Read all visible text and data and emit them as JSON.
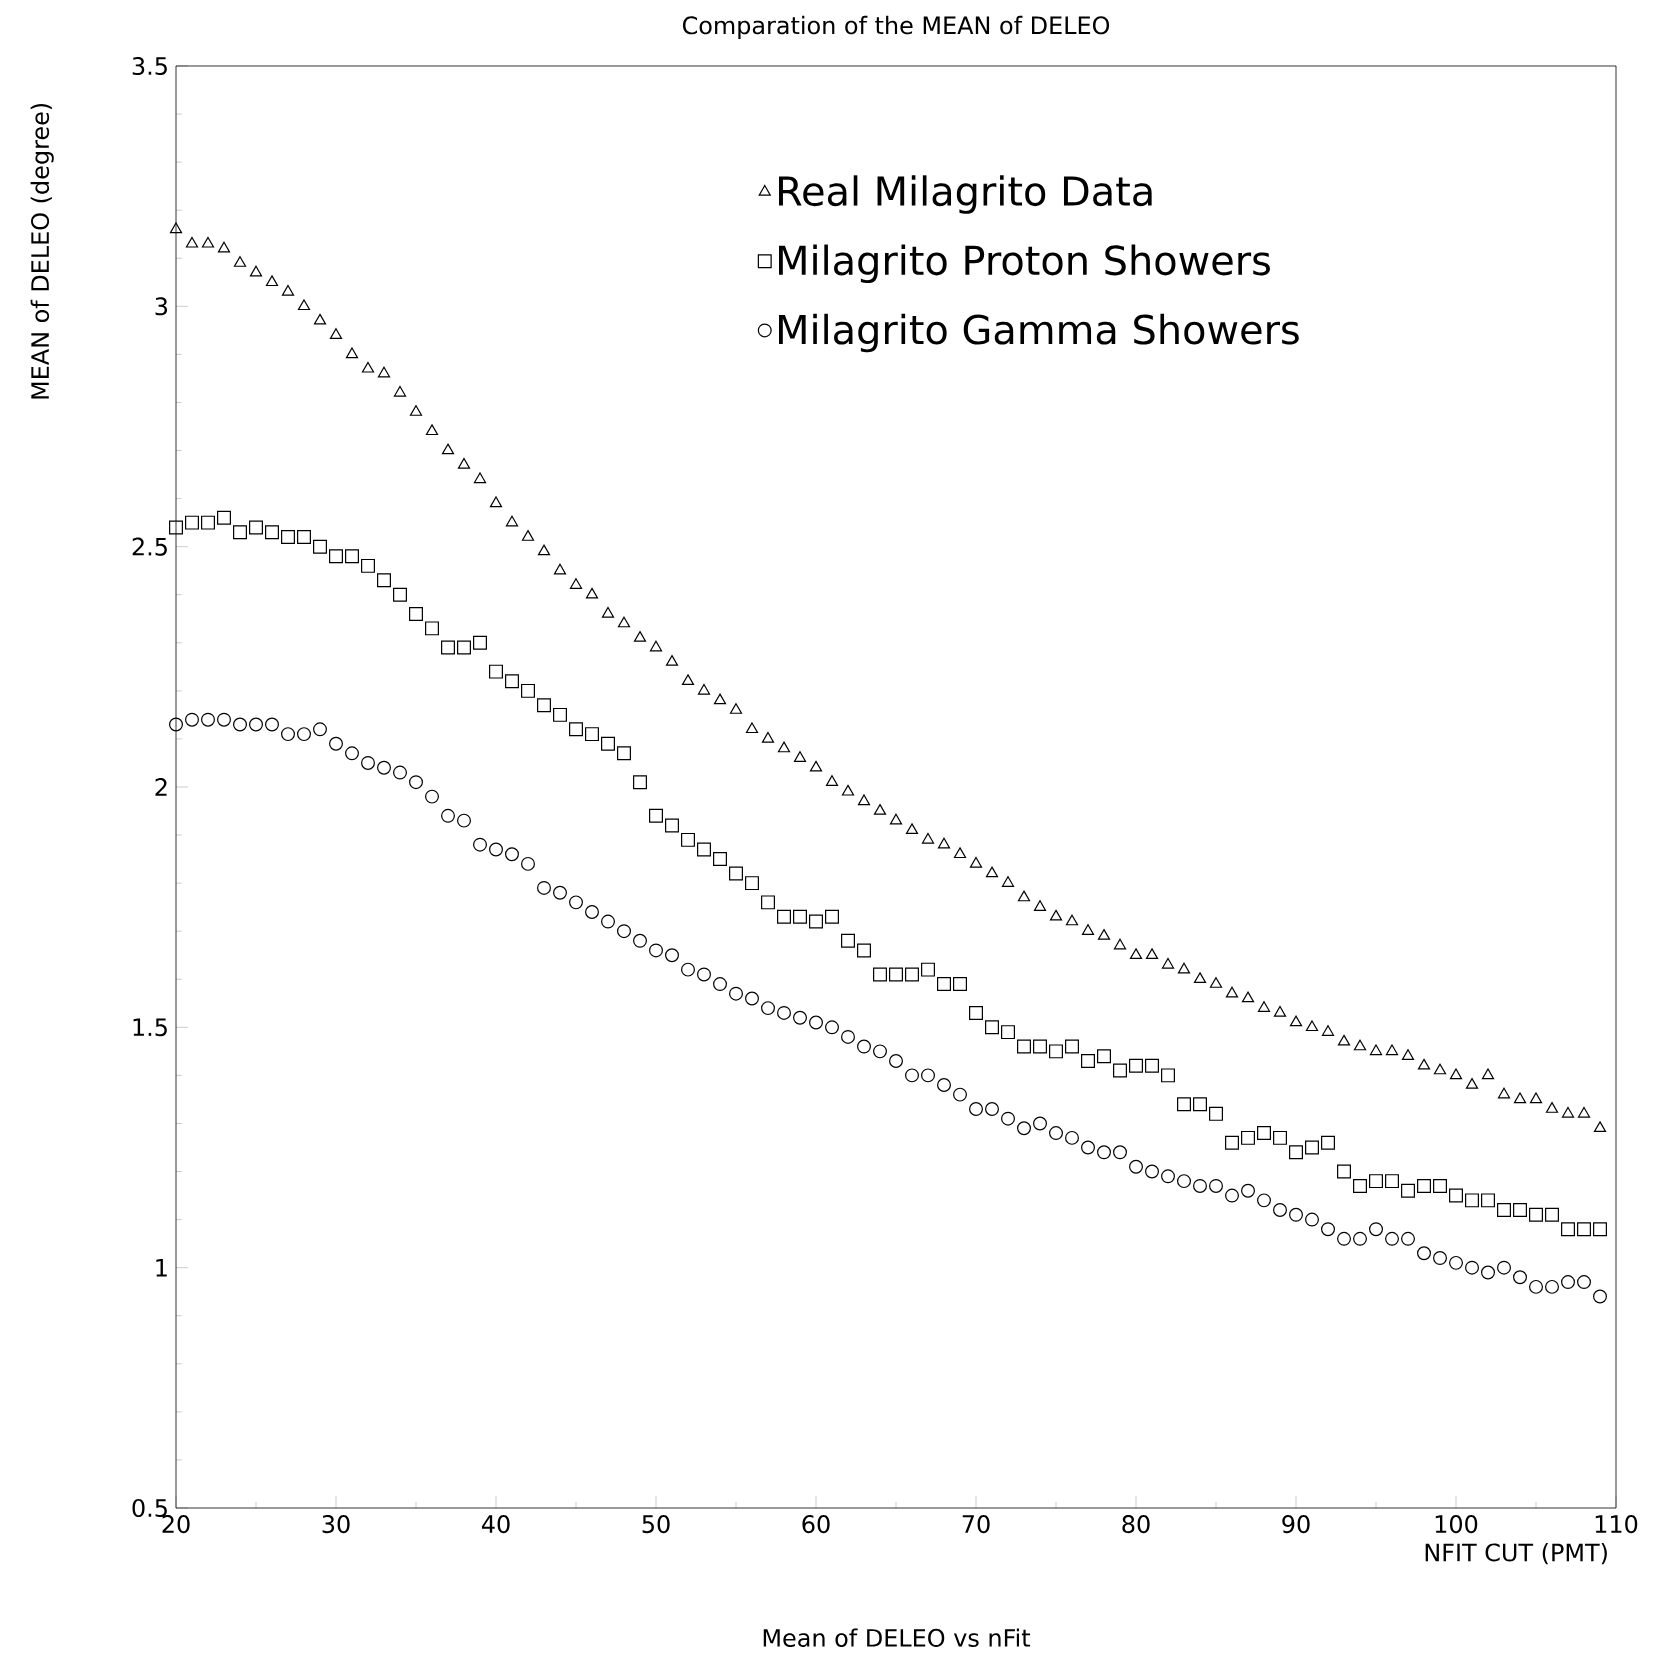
{
  "chart_data": {
    "type": "scatter",
    "title": "Comparation of the MEAN of DELEO",
    "xlabel": "NFIT CUT (PMT)",
    "ylabel": "MEAN of DELEO (degree)",
    "annotations": [
      "Mean of DELEO vs nFit"
    ],
    "x": [
      20,
      21,
      22,
      23,
      24,
      25,
      26,
      27,
      28,
      29,
      30,
      31,
      32,
      33,
      34,
      35,
      36,
      37,
      38,
      39,
      40,
      41,
      42,
      43,
      44,
      45,
      46,
      47,
      48,
      49,
      50,
      51,
      52,
      53,
      54,
      55,
      56,
      57,
      58,
      59,
      60,
      61,
      62,
      63,
      64,
      65,
      66,
      67,
      68,
      69,
      70,
      71,
      72,
      73,
      74,
      75,
      76,
      77,
      78,
      79,
      80,
      81,
      82,
      83,
      84,
      85,
      86,
      87,
      88,
      89,
      90,
      91,
      92,
      93,
      94,
      95,
      96,
      97,
      98,
      99,
      100,
      101,
      102,
      103,
      104,
      105,
      106,
      107,
      108,
      109
    ],
    "xlim": [
      20,
      110
    ],
    "xticks": [
      20,
      30,
      40,
      50,
      60,
      70,
      80,
      90,
      100,
      110
    ],
    "ylim": [
      0.5,
      3.5
    ],
    "yticks": [
      {
        "value": 0.5,
        "label": "0.5"
      },
      {
        "value": 1,
        "label": "1"
      },
      {
        "value": 1.5,
        "label": "1.5"
      },
      {
        "value": 2,
        "label": "2"
      },
      {
        "value": 2.5,
        "label": "2.5"
      },
      {
        "value": 3,
        "label": "3"
      },
      {
        "value": 3.5,
        "label": "3.5"
      }
    ],
    "grid": false,
    "legend": "top right",
    "series": [
      {
        "name": "Real Milagrito Data",
        "color": "#000000",
        "marker": "triangle",
        "values": [
          3.16,
          3.13,
          3.13,
          3.12,
          3.09,
          3.07,
          3.05,
          3.03,
          3.0,
          2.97,
          2.94,
          2.9,
          2.87,
          2.86,
          2.82,
          2.78,
          2.74,
          2.7,
          2.67,
          2.64,
          2.59,
          2.55,
          2.52,
          2.49,
          2.45,
          2.42,
          2.4,
          2.36,
          2.34,
          2.31,
          2.29,
          2.26,
          2.22,
          2.2,
          2.18,
          2.16,
          2.12,
          2.1,
          2.08,
          2.06,
          2.04,
          2.01,
          1.99,
          1.97,
          1.95,
          1.93,
          1.91,
          1.89,
          1.88,
          1.86,
          1.84,
          1.82,
          1.8,
          1.77,
          1.75,
          1.73,
          1.72,
          1.7,
          1.69,
          1.67,
          1.65,
          1.65,
          1.63,
          1.62,
          1.6,
          1.59,
          1.57,
          1.56,
          1.54,
          1.53,
          1.51,
          1.5,
          1.49,
          1.47,
          1.46,
          1.45,
          1.45,
          1.44,
          1.42,
          1.41,
          1.4,
          1.38,
          1.4,
          1.36,
          1.35,
          1.35,
          1.33,
          1.32,
          1.32,
          1.29
        ]
      },
      {
        "name": "Milagrito Proton Showers",
        "color": "#000000",
        "marker": "square",
        "values": [
          2.54,
          2.55,
          2.55,
          2.56,
          2.53,
          2.54,
          2.53,
          2.52,
          2.52,
          2.5,
          2.48,
          2.48,
          2.46,
          2.43,
          2.4,
          2.36,
          2.33,
          2.29,
          2.29,
          2.3,
          2.24,
          2.22,
          2.2,
          2.17,
          2.15,
          2.12,
          2.11,
          2.09,
          2.07,
          2.01,
          1.94,
          1.92,
          1.89,
          1.87,
          1.85,
          1.82,
          1.8,
          1.76,
          1.73,
          1.73,
          1.72,
          1.73,
          1.68,
          1.66,
          1.61,
          1.61,
          1.61,
          1.62,
          1.59,
          1.59,
          1.53,
          1.5,
          1.49,
          1.46,
          1.46,
          1.45,
          1.46,
          1.43,
          1.44,
          1.41,
          1.42,
          1.42,
          1.4,
          1.34,
          1.34,
          1.32,
          1.26,
          1.27,
          1.28,
          1.27,
          1.24,
          1.25,
          1.26,
          1.2,
          1.17,
          1.18,
          1.18,
          1.16,
          1.17,
          1.17,
          1.15,
          1.14,
          1.14,
          1.12,
          1.12,
          1.11,
          1.11,
          1.08,
          1.08,
          1.08
        ]
      },
      {
        "name": "Milagrito Gamma Showers",
        "color": "#000000",
        "marker": "circle",
        "values": [
          2.13,
          2.14,
          2.14,
          2.14,
          2.13,
          2.13,
          2.13,
          2.11,
          2.11,
          2.12,
          2.09,
          2.07,
          2.05,
          2.04,
          2.03,
          2.01,
          1.98,
          1.94,
          1.93,
          1.88,
          1.87,
          1.86,
          1.84,
          1.79,
          1.78,
          1.76,
          1.74,
          1.72,
          1.7,
          1.68,
          1.66,
          1.65,
          1.62,
          1.61,
          1.59,
          1.57,
          1.56,
          1.54,
          1.53,
          1.52,
          1.51,
          1.5,
          1.48,
          1.46,
          1.45,
          1.43,
          1.4,
          1.4,
          1.38,
          1.36,
          1.33,
          1.33,
          1.31,
          1.29,
          1.3,
          1.28,
          1.27,
          1.25,
          1.24,
          1.24,
          1.21,
          1.2,
          1.19,
          1.18,
          1.17,
          1.17,
          1.15,
          1.16,
          1.14,
          1.12,
          1.11,
          1.1,
          1.08,
          1.06,
          1.06,
          1.08,
          1.06,
          1.06,
          1.03,
          1.02,
          1.01,
          1.0,
          0.99,
          1.0,
          0.98,
          0.96,
          0.96,
          0.97,
          0.97,
          0.94
        ]
      }
    ]
  }
}
